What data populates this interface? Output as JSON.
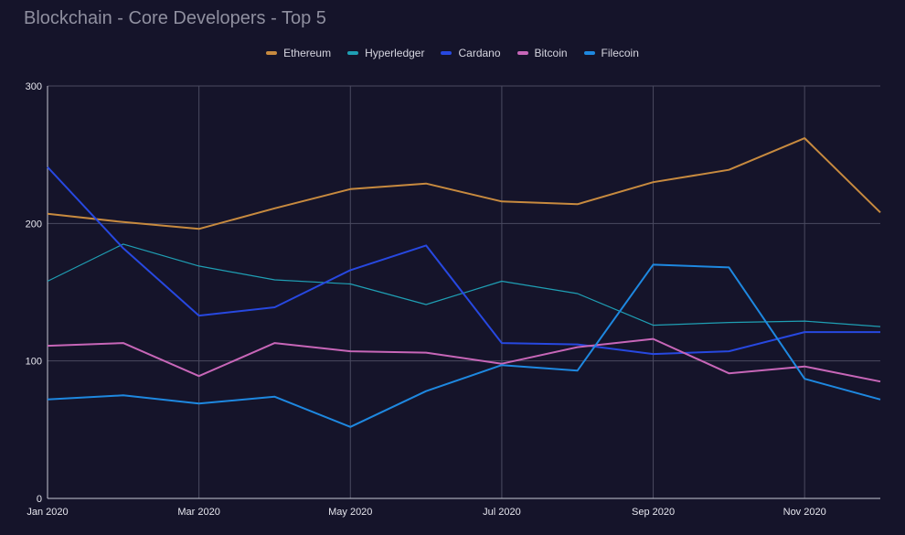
{
  "chart_data": {
    "type": "line",
    "title": "Blockchain - Core Developers - Top 5",
    "x_tick_labels": [
      "Jan 2020",
      "Mar 2020",
      "May 2020",
      "Jul 2020",
      "Sep 2020",
      "Nov 2020"
    ],
    "y_tick_labels": [
      "0",
      "100",
      "200",
      "300"
    ],
    "ylim": [
      0,
      300
    ],
    "x": [
      "2020-01",
      "2020-02",
      "2020-03",
      "2020-04",
      "2020-05",
      "2020-06",
      "2020-07",
      "2020-08",
      "2020-09",
      "2020-10",
      "2020-11",
      "2020-12"
    ],
    "legend_position": "top-center",
    "grid": true,
    "series": [
      {
        "name": "Ethereum",
        "color": "#c78a3f",
        "values": [
          207,
          201,
          196,
          211,
          225,
          229,
          216,
          214,
          230,
          239,
          262,
          208
        ]
      },
      {
        "name": "Hyperledger",
        "color": "#1f9fb4",
        "values": [
          158,
          185,
          169,
          159,
          156,
          141,
          158,
          149,
          126,
          128,
          129,
          125
        ]
      },
      {
        "name": "Cardano",
        "color": "#2748e0",
        "values": [
          241,
          182,
          133,
          139,
          166,
          184,
          113,
          112,
          105,
          107,
          121,
          121
        ]
      },
      {
        "name": "Bitcoin",
        "color": "#c766b8",
        "values": [
          111,
          113,
          89,
          113,
          107,
          106,
          98,
          110,
          116,
          91,
          96,
          85
        ]
      },
      {
        "name": "Filecoin",
        "color": "#1e88e0",
        "values": [
          72,
          75,
          69,
          74,
          52,
          78,
          97,
          93,
          170,
          168,
          87,
          72
        ]
      }
    ]
  }
}
